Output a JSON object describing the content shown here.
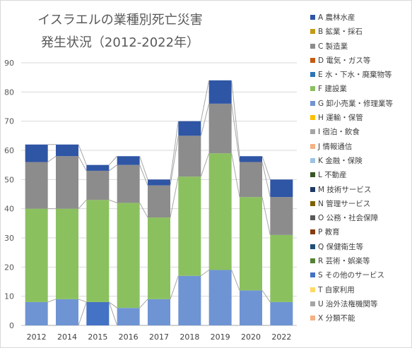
{
  "chart_data": {
    "type": "bar",
    "stacked": true,
    "title_lines": [
      "イスラエルの業種別死亡災害",
      "発生状況（2012-2022年）"
    ],
    "categories": [
      "2012",
      "2014",
      "2015",
      "2016",
      "2017",
      "2018",
      "2019",
      "2020",
      "2022"
    ],
    "ylim": [
      0,
      90
    ],
    "yticks": [
      0,
      10,
      20,
      30,
      40,
      50,
      60,
      70,
      80,
      90
    ],
    "grid": true,
    "legend_position": "right",
    "series": [
      {
        "name": "A 農林水産",
        "color": "#2f55a5",
        "values": [
          6,
          4,
          2,
          3,
          2,
          5,
          8,
          2,
          6
        ]
      },
      {
        "name": "B 鉱業・採石",
        "color": "#c59a14",
        "values": [
          0,
          0,
          0,
          0,
          0,
          0,
          0,
          0,
          0
        ]
      },
      {
        "name": "C 製造業",
        "color": "#8c8c8c",
        "values": [
          16,
          18,
          10,
          13,
          11,
          14,
          17,
          12,
          13
        ]
      },
      {
        "name": "D 電気・ガス等",
        "color": "#c55a11",
        "values": [
          0,
          0,
          0,
          0,
          0,
          0,
          0,
          0,
          0
        ]
      },
      {
        "name": "E 水・下水・廃棄物等",
        "color": "#2e75b6",
        "values": [
          0,
          0,
          0,
          0,
          0,
          0,
          0,
          0,
          0
        ]
      },
      {
        "name": "F 建設業",
        "color": "#8bc05f",
        "values": [
          32,
          31,
          35,
          36,
          28,
          34,
          40,
          32,
          23
        ]
      },
      {
        "name": "G 卸小売業・修理業等",
        "color": "#6f94d4",
        "values": [
          8,
          9,
          0,
          6,
          9,
          17,
          19,
          12,
          8
        ]
      },
      {
        "name": "H 運輸・保管",
        "color": "#ffc000",
        "values": [
          0,
          0,
          0,
          0,
          0,
          0,
          0,
          0,
          0
        ]
      },
      {
        "name": "I 宿泊・飲食",
        "color": "#a5a5a5",
        "values": [
          0,
          0,
          0,
          0,
          0,
          0,
          0,
          0,
          0
        ]
      },
      {
        "name": "J 情報通信",
        "color": "#f4b183",
        "values": [
          0,
          0,
          0,
          0,
          0,
          0,
          0,
          0,
          0
        ]
      },
      {
        "name": "K 金融・保険",
        "color": "#9dc3e6",
        "values": [
          0,
          0,
          0,
          0,
          0,
          0,
          0,
          0,
          0
        ]
      },
      {
        "name": "L 不動産",
        "color": "#375623",
        "values": [
          0,
          0,
          0,
          0,
          0,
          0,
          0,
          0,
          0
        ]
      },
      {
        "name": "M 技術サービス",
        "color": "#203864",
        "values": [
          0,
          0,
          0,
          0,
          0,
          0,
          0,
          0,
          0
        ]
      },
      {
        "name": "N 管理サービス",
        "color": "#7f6000",
        "values": [
          0,
          0,
          0,
          0,
          0,
          0,
          0,
          0,
          0
        ]
      },
      {
        "name": "O 公務・社会保障",
        "color": "#595959",
        "values": [
          0,
          0,
          0,
          0,
          0,
          0,
          0,
          0,
          0
        ]
      },
      {
        "name": "P 教育",
        "color": "#843c0c",
        "values": [
          0,
          0,
          0,
          0,
          0,
          0,
          0,
          0,
          0
        ]
      },
      {
        "name": "Q 保健衛生等",
        "color": "#1f4e79",
        "values": [
          0,
          0,
          0,
          0,
          0,
          0,
          0,
          0,
          0
        ]
      },
      {
        "name": "R 芸術・娯楽等",
        "color": "#548235",
        "values": [
          0,
          0,
          0,
          0,
          0,
          0,
          0,
          0,
          0
        ]
      },
      {
        "name": "S その他のサービス",
        "color": "#4472c4",
        "values": [
          0,
          0,
          8,
          0,
          0,
          0,
          0,
          0,
          0
        ]
      },
      {
        "name": "T 自家利用",
        "color": "#ffd966",
        "values": [
          0,
          0,
          0,
          0,
          0,
          0,
          0,
          0,
          0
        ]
      },
      {
        "name": "U 治外法権機関等",
        "color": "#a5a5a5",
        "values": [
          0,
          0,
          0,
          0,
          0,
          0,
          0,
          0,
          0
        ]
      },
      {
        "name": "X 分類不能",
        "color": "#f4b183",
        "values": [
          0,
          0,
          0,
          0,
          0,
          0,
          0,
          0,
          0
        ]
      }
    ]
  }
}
